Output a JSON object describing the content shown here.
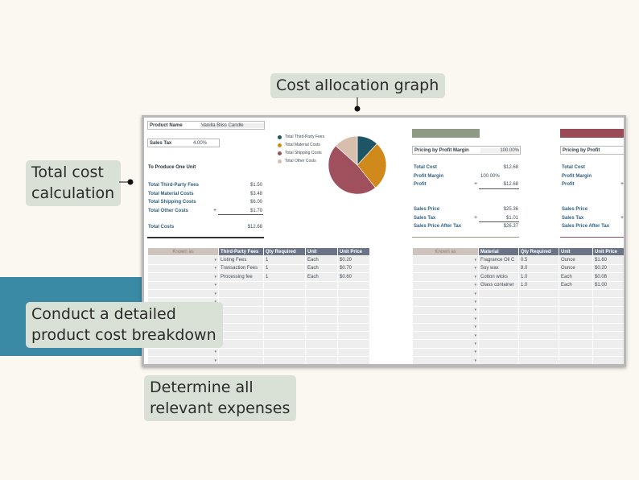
{
  "callouts": {
    "graph": "Cost allocation graph",
    "total_line1": "Total cost",
    "total_line2": "calculation",
    "breakdown_line1": "Conduct a detailed",
    "breakdown_line2": "product cost breakdown",
    "expenses_line1": "Determine all",
    "expenses_line2": "relevant expenses"
  },
  "product": {
    "name_label": "Product Name",
    "name_value": "Vanilla Bliss Candle",
    "tax_label": "Sales Tax",
    "tax_value": "4.00%",
    "section_title": "To Produce One Unit",
    "rows": [
      {
        "label": "Total Third-Party Fees",
        "value": "$1.50",
        "mark": ""
      },
      {
        "label": "Total Material Costs",
        "value": "$3.48",
        "mark": ""
      },
      {
        "label": "Total Shipping Costs",
        "value": "$6.00",
        "mark": ""
      },
      {
        "label": "Total Other Costs",
        "value": "$1.70",
        "mark": "+"
      }
    ],
    "total_label": "Total Costs",
    "total_value": "$12.68"
  },
  "chart_data": {
    "type": "pie",
    "categories": [
      "Total Third-Party Fees",
      "Total Material Costs",
      "Total Shipping Costs",
      "Total Other Costs"
    ],
    "values": [
      1.5,
      3.48,
      6.0,
      1.7
    ],
    "colors": [
      "#1d5466",
      "#d08a1c",
      "#a04f5d",
      "#d8bfad"
    ],
    "legend_position": "left"
  },
  "margin_panel": {
    "header_color": "#8e9a83",
    "method_label": "Pricing by Profit Margin",
    "method_value": "100.00%",
    "total_cost_label": "Total Cost",
    "total_cost_value": "$12.68",
    "profit_margin_label": "Profit Margin",
    "profit_margin_value": "100.00%",
    "profit_label": "Profit",
    "profit_mark": "+",
    "profit_value": "$12.68",
    "sales_price_label": "Sales Price",
    "sales_price_value": "$25.36",
    "sales_tax_label": "Sales Tax",
    "sales_tax_mark": "+",
    "sales_tax_value": "$1.01",
    "after_tax_label": "Sales Price After Tax",
    "after_tax_value": "$26.37"
  },
  "profit_panel": {
    "header_color": "#9a4b57",
    "method_label": "Pricing by Profit",
    "total_cost_label": "Total Cost",
    "profit_margin_label": "Profit Margin",
    "profit_label": "Profit",
    "profit_mark": "+",
    "sales_price_label": "Sales Price",
    "sales_tax_label": "Sales Tax",
    "sales_tax_mark": "+",
    "after_tax_label": "Sales Price After Tax"
  },
  "fees_table": {
    "known_as": "Known as",
    "headers": [
      "Third-Party Fees",
      "Qty Required",
      "Unit",
      "Unit Price"
    ],
    "rows": [
      [
        "Listing Fees",
        "1",
        "Each",
        "$0.20"
      ],
      [
        "Transaction Fees",
        "1",
        "Each",
        "$0.70"
      ],
      [
        "Processing fee",
        "1",
        "Each",
        "$0.60"
      ]
    ]
  },
  "materials_table": {
    "known_as": "Known as",
    "headers": [
      "Material",
      "Qty Required",
      "Unit",
      "Unit Price"
    ],
    "rows": [
      [
        "Fragrance Oil C",
        "0.5",
        "Ounce",
        "$1.60"
      ],
      [
        "Soy wax",
        "8.0",
        "Ounce",
        "$0.20"
      ],
      [
        "Cotton wicks",
        "1.0",
        "Each",
        "$0.08"
      ],
      [
        "Glass container",
        "1.0",
        "Each",
        "$1.00"
      ]
    ]
  }
}
